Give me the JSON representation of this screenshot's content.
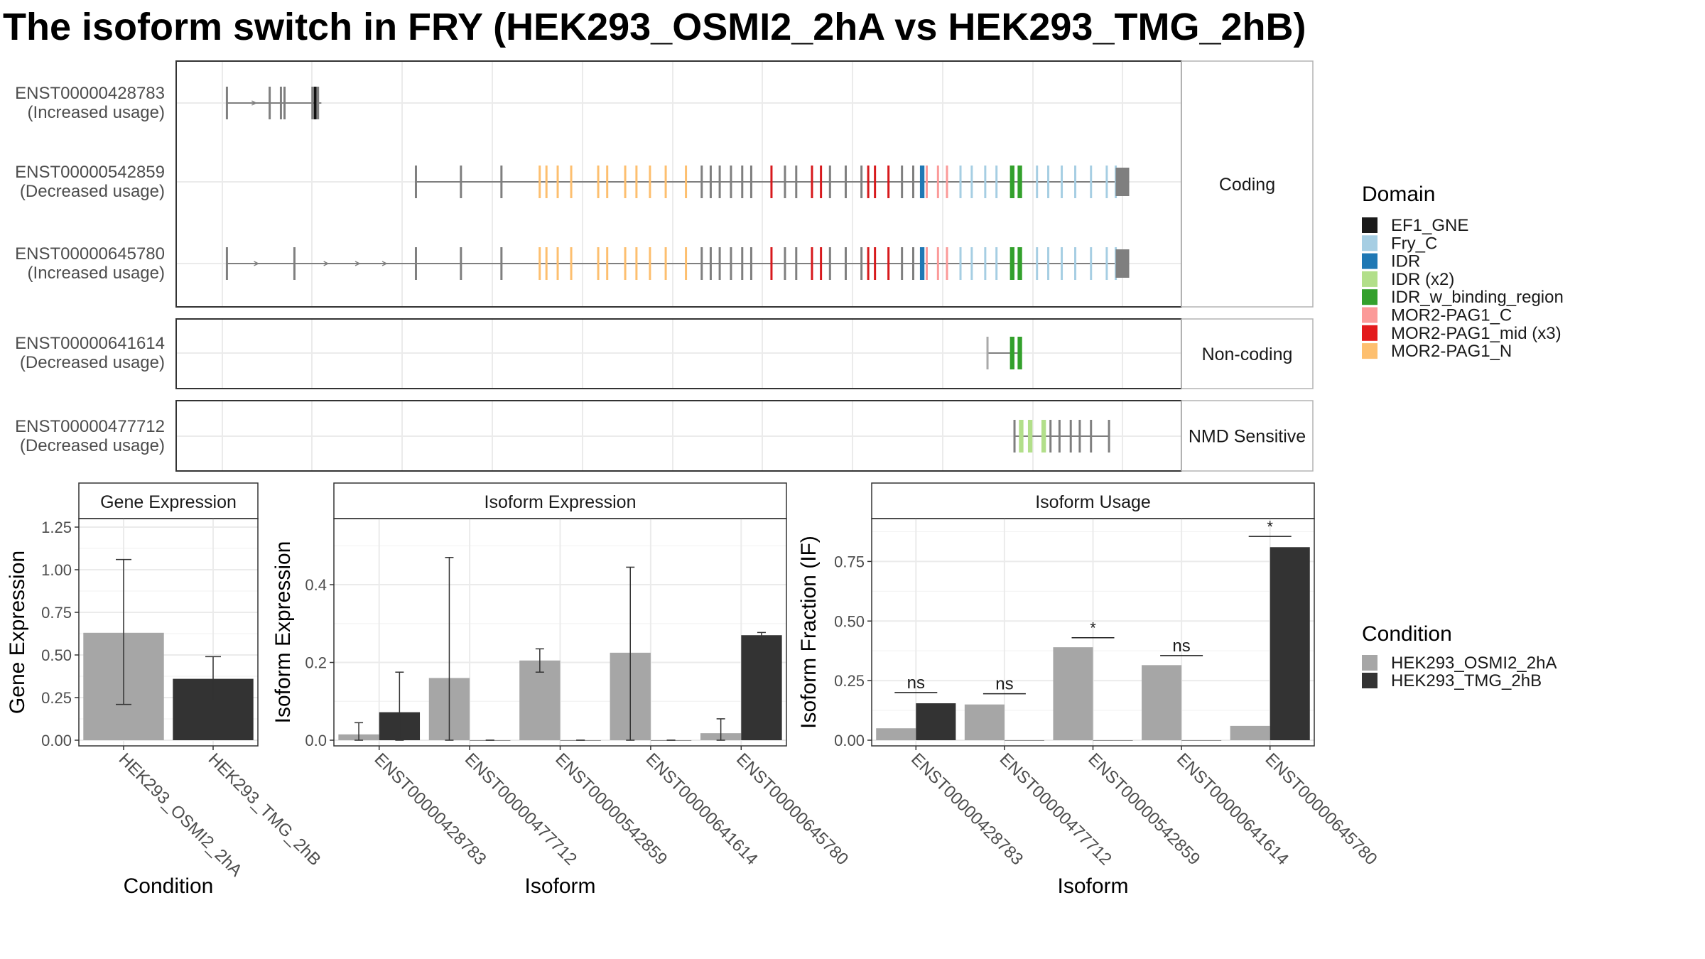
{
  "figure": {
    "title": "The isoform switch in FRY (HEK293_OSMI2_2hA vs HEK293_TMG_2hB)"
  },
  "chart_data": [
    {
      "type": "gene-structure",
      "facets": [
        {
          "label": "Coding",
          "tracks": [
            {
              "name": "ENST00000428783",
              "usage": "(Increased usage)",
              "start": 0.1,
              "end": 2.2,
              "pieces": [
                {
                  "p": 1.3,
                  "c": "gray"
                },
                {
                  "p": 1.38,
                  "c": "gray"
                },
                {
                  "p": 2.0,
                  "c": "gray"
                },
                {
                  "p": 2.08,
                  "c": "black",
                  "w": 0.1
                },
                {
                  "p": 2.12,
                  "c": "gray",
                  "w": 0.06
                }
              ]
            },
            {
              "name": "ENST00000542859",
              "usage": "(Decreased usage)",
              "start": 4.3,
              "end": 20.1,
              "pieces": []
            },
            {
              "name": "ENST00000645780",
              "usage": "(Increased usage)",
              "start": 0.1,
              "end": 20.1,
              "pieces": [
                {
                  "p": 1.6,
                  "c": "gray"
                }
              ]
            }
          ]
        },
        {
          "label": "Non-coding",
          "tracks": [
            {
              "name": "ENST00000641614",
              "usage": "(Decreased usage)",
              "start": 17.0,
              "end": 17.7,
              "pieces": [
                {
                  "p": 17.0,
                  "c": "lightgray"
                },
                {
                  "p": 17.55,
                  "c": "green",
                  "w": 0.1
                },
                {
                  "p": 17.72,
                  "c": "green",
                  "w": 0.1
                }
              ]
            }
          ]
        },
        {
          "label": "NMD Sensitive",
          "tracks": [
            {
              "name": "ENST00000477712",
              "usage": "(Decreased usage)",
              "start": 17.6,
              "end": 19.7,
              "pieces": [
                {
                  "p": 17.6,
                  "c": "gray"
                },
                {
                  "p": 17.75,
                  "c": "lightgreen",
                  "w": 0.1
                },
                {
                  "p": 17.95,
                  "c": "lightgreen",
                  "w": 0.1
                },
                {
                  "p": 18.25,
                  "c": "lightgreen",
                  "w": 0.1
                },
                {
                  "p": 18.4,
                  "c": "gray"
                },
                {
                  "p": 18.6,
                  "c": "gray"
                },
                {
                  "p": 18.85,
                  "c": "gray"
                },
                {
                  "p": 19.05,
                  "c": "gray"
                },
                {
                  "p": 19.3,
                  "c": "gray"
                },
                {
                  "p": 19.7,
                  "c": "gray"
                }
              ]
            }
          ]
        }
      ],
      "shared_exons": [
        {
          "p": 4.3,
          "c": "gray"
        },
        {
          "p": 5.3,
          "c": "gray"
        },
        {
          "p": 6.2,
          "c": "gray"
        },
        {
          "p": 7.05,
          "c": "orange"
        },
        {
          "p": 7.2,
          "c": "orange"
        },
        {
          "p": 7.45,
          "c": "orange"
        },
        {
          "p": 7.75,
          "c": "orange"
        },
        {
          "p": 8.35,
          "c": "orange"
        },
        {
          "p": 8.55,
          "c": "orange"
        },
        {
          "p": 8.95,
          "c": "orange"
        },
        {
          "p": 9.2,
          "c": "orange"
        },
        {
          "p": 9.5,
          "c": "orange"
        },
        {
          "p": 9.85,
          "c": "orange"
        },
        {
          "p": 10.3,
          "c": "orange"
        },
        {
          "p": 10.65,
          "c": "gray"
        },
        {
          "p": 10.85,
          "c": "gray"
        },
        {
          "p": 11.05,
          "c": "gray"
        },
        {
          "p": 11.3,
          "c": "gray"
        },
        {
          "p": 11.55,
          "c": "gray"
        },
        {
          "p": 11.75,
          "c": "gray"
        },
        {
          "p": 12.2,
          "c": "red"
        },
        {
          "p": 12.5,
          "c": "gray"
        },
        {
          "p": 12.75,
          "c": "gray"
        },
        {
          "p": 13.1,
          "c": "red"
        },
        {
          "p": 13.3,
          "c": "red"
        },
        {
          "p": 13.5,
          "c": "gray"
        },
        {
          "p": 13.85,
          "c": "gray"
        },
        {
          "p": 14.2,
          "c": "gray"
        },
        {
          "p": 14.35,
          "c": "red"
        },
        {
          "p": 14.5,
          "c": "red"
        },
        {
          "p": 14.8,
          "c": "red"
        },
        {
          "p": 15.1,
          "c": "gray"
        },
        {
          "p": 15.35,
          "c": "gray"
        },
        {
          "p": 15.55,
          "c": "blue",
          "w": 0.1
        },
        {
          "p": 15.65,
          "c": "pink"
        },
        {
          "p": 15.9,
          "c": "pink"
        },
        {
          "p": 16.1,
          "c": "pink"
        },
        {
          "p": 16.4,
          "c": "lightblue"
        },
        {
          "p": 16.65,
          "c": "lightblue"
        },
        {
          "p": 16.95,
          "c": "lightblue"
        },
        {
          "p": 17.2,
          "c": "lightblue"
        },
        {
          "p": 17.55,
          "c": "green",
          "w": 0.1
        },
        {
          "p": 17.72,
          "c": "green",
          "w": 0.1
        },
        {
          "p": 18.1,
          "c": "lightblue"
        },
        {
          "p": 18.35,
          "c": "lightblue"
        },
        {
          "p": 18.65,
          "c": "lightblue"
        },
        {
          "p": 18.95,
          "c": "lightblue"
        },
        {
          "p": 19.3,
          "c": "lightblue"
        },
        {
          "p": 19.65,
          "c": "lightblue"
        },
        {
          "p": 19.85,
          "c": "lightblue"
        },
        {
          "p": 20.0,
          "c": "gray",
          "w": 0.3
        }
      ]
    },
    {
      "type": "bar",
      "title": "Gene Expression",
      "xlabel": "Condition",
      "ylabel": "Gene Expression",
      "ylim": [
        0,
        1.3
      ],
      "yticks": [
        "0.00",
        "0.25",
        "0.50",
        "0.75",
        "1.00",
        "1.25"
      ],
      "categories": [
        "HEK293_OSMI2_2hA",
        "HEK293_TMG_2hB"
      ],
      "values": [
        0.63,
        0.36
      ],
      "err_low": [
        0.21,
        0.23
      ],
      "err_high": [
        1.06,
        0.49
      ]
    },
    {
      "type": "bar",
      "title": "Isoform Expression",
      "xlabel": "Isoform",
      "ylabel": "Isoform Expression",
      "ylim": [
        0,
        0.57
      ],
      "yticks": [
        "0.0",
        "0.2",
        "0.4"
      ],
      "categories": [
        "ENST00000428783",
        "ENST00000477712",
        "ENST00000542859",
        "ENST00000641614",
        "ENST00000645780"
      ],
      "series": [
        {
          "name": "HEK293_OSMI2_2hA",
          "values": [
            0.015,
            0.16,
            0.205,
            0.225,
            0.018
          ],
          "err_low": [
            0.0,
            0.0,
            0.175,
            0.0,
            0.0
          ],
          "err_high": [
            0.045,
            0.47,
            0.235,
            0.445,
            0.055
          ]
        },
        {
          "name": "HEK293_TMG_2hB",
          "values": [
            0.072,
            0.0,
            0.0,
            0.0,
            0.27
          ],
          "err_low": [
            0.0,
            0.0,
            0.0,
            0.0,
            0.265
          ],
          "err_high": [
            0.175,
            0.0,
            0.0,
            0.0,
            0.277
          ]
        }
      ]
    },
    {
      "type": "bar",
      "title": "Isoform Usage",
      "xlabel": "Isoform",
      "ylabel": "Isoform Fraction (IF)",
      "ylim": [
        0,
        0.93
      ],
      "yticks": [
        "0.00",
        "0.25",
        "0.50",
        "0.75"
      ],
      "categories": [
        "ENST00000428783",
        "ENST00000477712",
        "ENST00000542859",
        "ENST00000641614",
        "ENST00000645780"
      ],
      "series": [
        {
          "name": "HEK293_OSMI2_2hA",
          "values": [
            0.05,
            0.15,
            0.39,
            0.315,
            0.06
          ]
        },
        {
          "name": "HEK293_TMG_2hB",
          "values": [
            0.155,
            0.0,
            0.0,
            0.0,
            0.81
          ]
        }
      ],
      "significance": [
        {
          "label": "ns",
          "y": 0.2
        },
        {
          "label": "ns",
          "y": 0.195
        },
        {
          "label": "*",
          "y": 0.43
        },
        {
          "label": "ns",
          "y": 0.355
        },
        {
          "label": "*",
          "y": 0.855
        }
      ]
    }
  ],
  "legends": {
    "domain": {
      "title": "Domain",
      "items": [
        {
          "label": "EF1_GNE",
          "color": "#1a1a1a"
        },
        {
          "label": "Fry_C",
          "color": "#a6cee3"
        },
        {
          "label": "IDR",
          "color": "#1f78b4"
        },
        {
          "label": "IDR (x2)",
          "color": "#b2df8a"
        },
        {
          "label": "IDR_w_binding_region",
          "color": "#33a02c"
        },
        {
          "label": "MOR2-PAG1_C",
          "color": "#fb9a99"
        },
        {
          "label": "MOR2-PAG1_mid (x3)",
          "color": "#e31a1c"
        },
        {
          "label": "MOR2-PAG1_N",
          "color": "#fdbf6f"
        }
      ]
    },
    "condition": {
      "title": "Condition",
      "items": [
        {
          "label": "HEK293_OSMI2_2hA",
          "color": "#a6a6a6"
        },
        {
          "label": "HEK293_TMG_2hB",
          "color": "#333333"
        }
      ]
    }
  },
  "colors": {
    "gray": "#7f7f7f",
    "lightgray": "#a9a9a9",
    "black": "#111111",
    "orange": "#fdbf6f",
    "red": "#d7191c",
    "pink": "#fb9a99",
    "blue": "#1f78b4",
    "lightblue": "#a6cee3",
    "green": "#33a02c",
    "lightgreen": "#b2df8a",
    "bar_a": "#a6a6a6",
    "bar_b": "#333333"
  }
}
